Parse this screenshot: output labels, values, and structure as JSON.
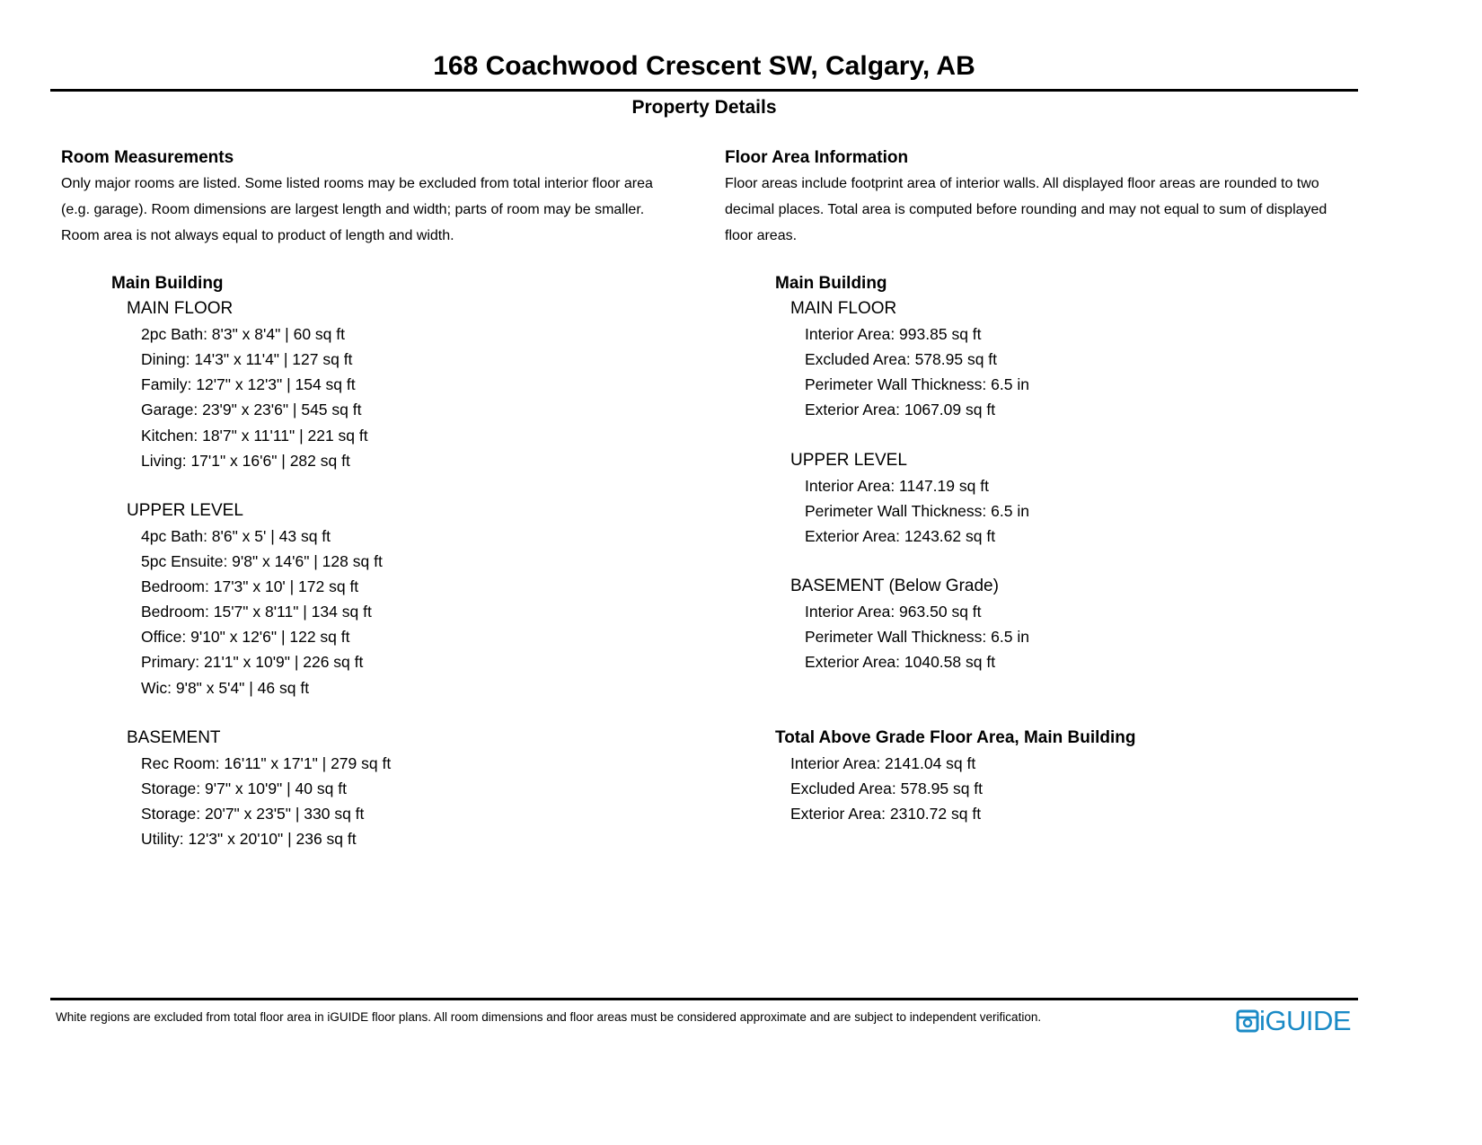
{
  "header": {
    "title": "168 Coachwood Crescent SW, Calgary, AB",
    "subtitle": "Property Details"
  },
  "room_measurements": {
    "heading": "Room Measurements",
    "description": "Only major rooms are listed. Some listed rooms may be excluded from total interior floor area (e.g. garage). Room dimensions are largest length and width; parts of room may be smaller. Room area is not always equal to product of length and width.",
    "description_lines": [
      "Only major rooms are listed. Some listed rooms may be excluded from total interior floor area",
      "(e.g. garage). Room dimensions are largest length and width; parts of room may be smaller.",
      "Room area is not always equal to product of length and width."
    ],
    "building": "Main Building",
    "floors": [
      {
        "name": "MAIN FLOOR",
        "rooms": [
          "2pc Bath: 8'3\" x 8'4\" | 60 sq ft",
          "Dining: 14'3\" x 11'4\" | 127 sq ft",
          "Family: 12'7\" x 12'3\" | 154 sq ft",
          "Garage: 23'9\" x 23'6\" | 545 sq ft",
          "Kitchen: 18'7\" x 11'11\" | 221 sq ft",
          "Living: 17'1\" x 16'6\" | 282 sq ft"
        ]
      },
      {
        "name": "UPPER LEVEL",
        "rooms": [
          "4pc Bath: 8'6\" x 5' | 43 sq ft",
          "5pc Ensuite: 9'8\" x 14'6\" | 128 sq ft",
          "Bedroom: 17'3\" x 10' | 172 sq ft",
          "Bedroom: 15'7\" x 8'11\" | 134 sq ft",
          "Office: 9'10\" x 12'6\" | 122 sq ft",
          "Primary: 21'1\" x 10'9\" | 226 sq ft",
          "Wic: 9'8\" x 5'4\" | 46 sq ft"
        ]
      },
      {
        "name": "BASEMENT",
        "rooms": [
          "Rec Room: 16'11\" x 17'1\" | 279 sq ft",
          "Storage: 9'7\" x 10'9\" | 40 sq ft",
          "Storage: 20'7\" x 23'5\" | 330 sq ft",
          "Utility: 12'3\" x 20'10\" | 236 sq ft"
        ]
      }
    ]
  },
  "floor_area": {
    "heading": "Floor Area Information",
    "description_lines": [
      "Floor areas include footprint area of interior walls. All displayed floor areas are rounded to two",
      "decimal places. Total area is computed before rounding and may not equal to sum of displayed",
      "floor areas."
    ],
    "building": "Main Building",
    "floors": [
      {
        "name": "MAIN FLOOR",
        "items": [
          "Interior Area: 993.85 sq ft",
          "Excluded Area: 578.95 sq ft",
          "Perimeter Wall Thickness: 6.5 in",
          "Exterior Area: 1067.09 sq ft"
        ]
      },
      {
        "name": "UPPER LEVEL",
        "items": [
          "Interior Area: 1147.19 sq ft",
          "Perimeter Wall Thickness: 6.5 in",
          "Exterior Area: 1243.62 sq ft"
        ]
      },
      {
        "name": "BASEMENT (Below Grade)",
        "items": [
          "Interior Area: 963.50 sq ft",
          "Perimeter Wall Thickness: 6.5 in",
          "Exterior Area: 1040.58 sq ft"
        ]
      }
    ],
    "total": {
      "heading": "Total Above Grade Floor Area, Main Building",
      "items": [
        "Interior Area: 2141.04 sq ft",
        "Excluded Area: 578.95 sq ft",
        "Exterior Area: 2310.72 sq ft"
      ]
    }
  },
  "footer": {
    "disclaimer": "White regions are excluded from total floor area in iGUIDE floor plans. All room dimensions and floor areas must be considered approximate and are subject to independent verification.",
    "logo_text": "iGUIDE",
    "logo_color": "#1a8ac6"
  }
}
